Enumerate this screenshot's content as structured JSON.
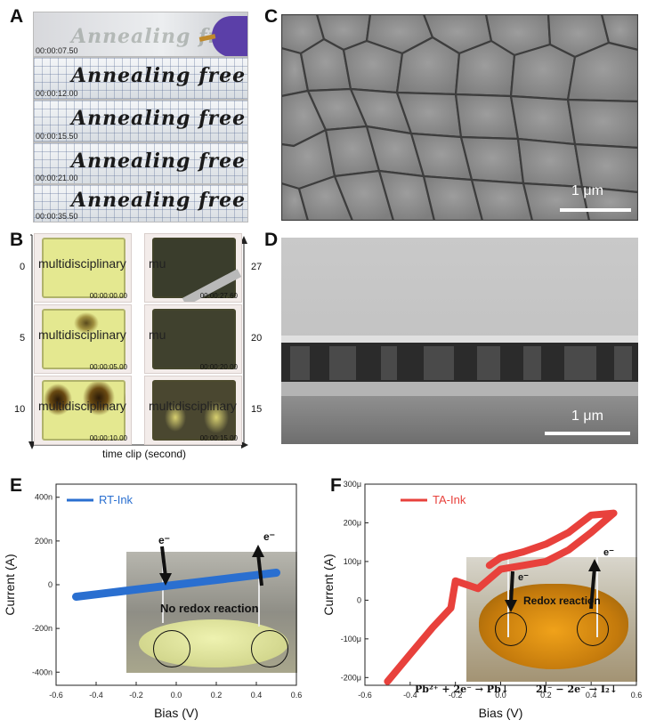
{
  "panel_letters": {
    "a": "A",
    "b": "B",
    "c": "C",
    "d": "D",
    "e": "E",
    "f": "F"
  },
  "panel_a": {
    "frames": [
      {
        "time": "00:00:07.50",
        "text": "Annealing free"
      },
      {
        "time": "00:00:12.00",
        "text": "Annealing free"
      },
      {
        "time": "00:00:15.50",
        "text": "Annealing free"
      },
      {
        "time": "00:00:21.00",
        "text": "Annealing free"
      },
      {
        "time": "00:00:35.50",
        "text": "Annealing free"
      }
    ]
  },
  "panel_b": {
    "left_tiles": [
      {
        "label": "0",
        "text": "multidisciplinary",
        "time": "00:00:00.00",
        "color": "#e4e890"
      },
      {
        "label": "5",
        "text": "multidisciplinary",
        "time": "00:00:05.00",
        "color": "#e4e890"
      },
      {
        "label": "10",
        "text": "multidisciplinary",
        "time": "00:00:10.00",
        "color": "#e4e890"
      }
    ],
    "right_tiles": [
      {
        "label": "27",
        "text": "mu",
        "time": "00:00:27.60",
        "color": "#3a3d2c"
      },
      {
        "label": "20",
        "text": "mu",
        "time": "00:00:20.00",
        "color": "#40412e"
      },
      {
        "label": "15",
        "text": "multidisciplinary",
        "time": "00:00:15.00",
        "color": "#4a4730"
      }
    ],
    "axis_label": "time clip (second)"
  },
  "panel_c": {
    "scale": "1 μm"
  },
  "panel_d": {
    "scale": "1 μm"
  },
  "panel_e": {
    "legend": "RT-Ink",
    "xlabel": "Bias (V)",
    "ylabel": "Current (A)",
    "xticks": [
      "-0.6",
      "-0.4",
      "-0.2",
      "0.0",
      "0.2",
      "0.4",
      "0.6"
    ],
    "yticks": [
      "400n",
      "200n",
      "0",
      "-200n",
      "-400n"
    ],
    "inset_caption": "No redox reaction",
    "electron": "e⁻"
  },
  "panel_f": {
    "legend": "TA-Ink",
    "xlabel": "Bias (V)",
    "ylabel": "Current (A)",
    "xticks": [
      "-0.6",
      "-0.4",
      "-0.2",
      "0.0",
      "0.2",
      "0.4",
      "0.6"
    ],
    "yticks": [
      "300μ",
      "200μ",
      "100μ",
      "0",
      "-100μ",
      "-200μ"
    ],
    "inset_caption": "Redox reaction",
    "eq_left": "Pb²⁺ + 2e⁻ → Pb↓",
    "eq_right": "2I⁻ − 2e⁻ → I₂↓",
    "electron": "e⁻"
  },
  "chart_data": [
    {
      "type": "line",
      "series": [
        {
          "name": "RT-Ink",
          "color": "#2a6fd0",
          "x": [
            -0.5,
            -0.4,
            -0.3,
            -0.2,
            -0.1,
            0.0,
            0.1,
            0.2,
            0.3,
            0.4,
            0.5
          ],
          "y": [
            -5.5e-08,
            -4.4e-08,
            -3.3e-08,
            -2.2e-08,
            -1.1e-08,
            0,
            1.1e-08,
            2.2e-08,
            3.3e-08,
            4.4e-08,
            5.5e-08
          ]
        }
      ],
      "xlabel": "Bias (V)",
      "ylabel": "Current (A)",
      "xlim": [
        -0.6,
        0.6
      ],
      "ylim": [
        -4.6e-07,
        4.6e-07
      ]
    },
    {
      "type": "line",
      "series": [
        {
          "name": "TA-Ink",
          "color": "#e8413c",
          "x": [
            -0.5,
            -0.4,
            -0.3,
            -0.22,
            -0.2,
            -0.1,
            0.0,
            0.1,
            0.2,
            0.3,
            0.4,
            0.5,
            0.4,
            0.3,
            0.2,
            0.1,
            0.0,
            -0.05
          ],
          "y": [
            -0.00021,
            -0.00014,
            -7e-05,
            -2e-05,
            5e-05,
            3e-05,
            8e-05,
            9e-05,
            0.0001,
            0.00013,
            0.000175,
            0.000225,
            0.00022,
            0.000175,
            0.000145,
            0.000125,
            0.00011,
            9e-05
          ]
        }
      ],
      "xlabel": "Bias (V)",
      "ylabel": "Current (A)",
      "xlim": [
        -0.6,
        0.6
      ],
      "ylim": [
        -0.00022,
        0.0003
      ]
    }
  ]
}
